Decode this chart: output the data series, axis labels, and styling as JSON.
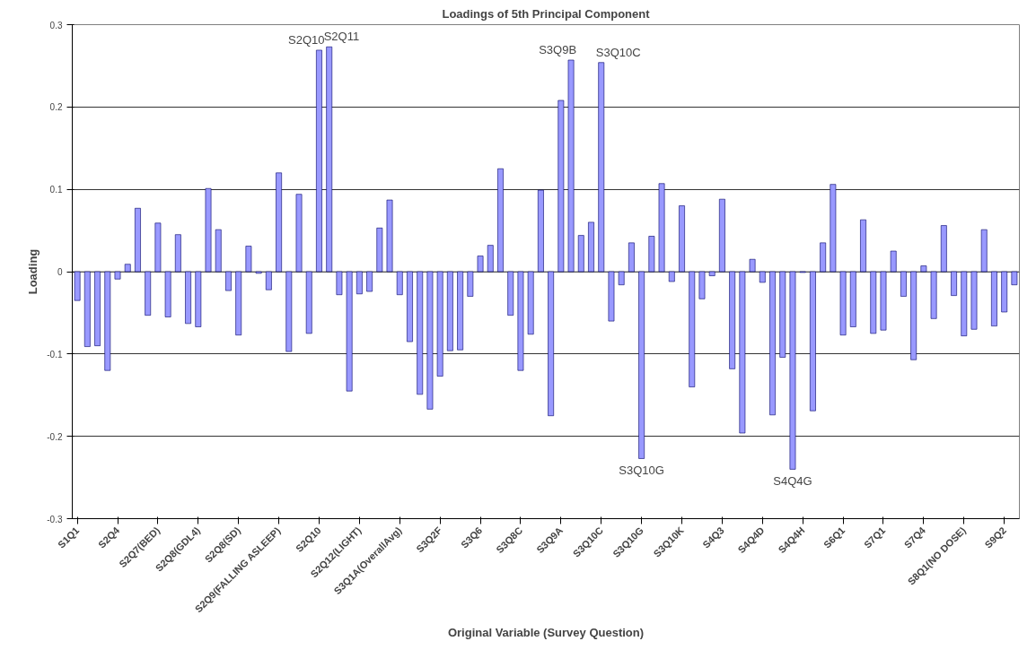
{
  "chart_data": {
    "type": "bar",
    "title": "Loadings of 5th Principal Component",
    "xlabel": "Original Variable (Survey Question)",
    "ylabel": "Loading",
    "categories": [
      "S1Q1",
      null,
      null,
      null,
      "S2Q4",
      null,
      null,
      null,
      "S2Q7(BED)",
      null,
      null,
      null,
      "S2Q8(GDL4)",
      null,
      null,
      null,
      "S2Q8(SD)",
      null,
      null,
      null,
      "S2Q9(FALLING ASLEEP)",
      null,
      null,
      null,
      "S2Q10",
      null,
      null,
      null,
      "S2Q12(LIGHT)",
      null,
      null,
      null,
      "S3Q1A(OverallAvg)",
      null,
      null,
      null,
      "S3Q2F",
      null,
      null,
      null,
      "S3Q6",
      null,
      null,
      null,
      "S3Q8C",
      null,
      null,
      null,
      "S3Q9A",
      null,
      null,
      null,
      "S3Q10C",
      null,
      null,
      null,
      "S3Q10G",
      null,
      null,
      null,
      "S3Q10K",
      null,
      null,
      null,
      "S4Q3",
      null,
      null,
      null,
      "S4Q4D",
      null,
      null,
      null,
      "S4Q4H",
      null,
      null,
      null,
      "S6Q1",
      null,
      null,
      null,
      "S7Q1",
      null,
      null,
      null,
      "S7Q4",
      null,
      null,
      null,
      "S8Q1(NO DOSE)",
      null,
      null,
      null,
      "S9Q2",
      null
    ],
    "values": [
      -0.035,
      -0.091,
      -0.09,
      -0.12,
      -0.009,
      0.009,
      0.077,
      -0.053,
      0.059,
      -0.055,
      0.045,
      -0.063,
      -0.067,
      0.101,
      0.051,
      -0.023,
      -0.077,
      0.031,
      -0.002,
      -0.022,
      0.12,
      -0.097,
      0.094,
      -0.075,
      0.269,
      0.273,
      -0.028,
      -0.145,
      -0.027,
      -0.024,
      0.053,
      0.087,
      -0.028,
      -0.085,
      -0.149,
      -0.167,
      -0.127,
      -0.096,
      -0.095,
      -0.03,
      0.019,
      0.032,
      0.125,
      -0.053,
      -0.12,
      -0.076,
      0.099,
      -0.175,
      0.208,
      0.257,
      0.044,
      0.06,
      0.254,
      -0.06,
      -0.016,
      0.035,
      -0.227,
      0.043,
      0.107,
      -0.012,
      0.08,
      -0.14,
      -0.033,
      -0.005,
      0.088,
      -0.118,
      -0.196,
      0.015,
      -0.013,
      -0.174,
      -0.104,
      -0.24,
      -0.001,
      -0.169,
      0.035,
      0.106,
      -0.077,
      -0.067,
      0.063,
      -0.075,
      -0.071,
      0.025,
      -0.03,
      -0.107,
      0.007,
      -0.057,
      0.056,
      -0.029,
      -0.078,
      -0.07,
      0.051,
      -0.066,
      -0.049,
      -0.016
    ],
    "color": "#9999ff",
    "ylim": [
      -0.3,
      0.3
    ],
    "yticks": [
      -0.3,
      -0.2,
      -0.1,
      0,
      0.1,
      0.2,
      0.3
    ],
    "grid": "y",
    "annotations": [
      "S2Q10",
      "S2Q11",
      "S3Q9B",
      "S3Q10C",
      "S3Q10G",
      "S4Q4G"
    ]
  }
}
